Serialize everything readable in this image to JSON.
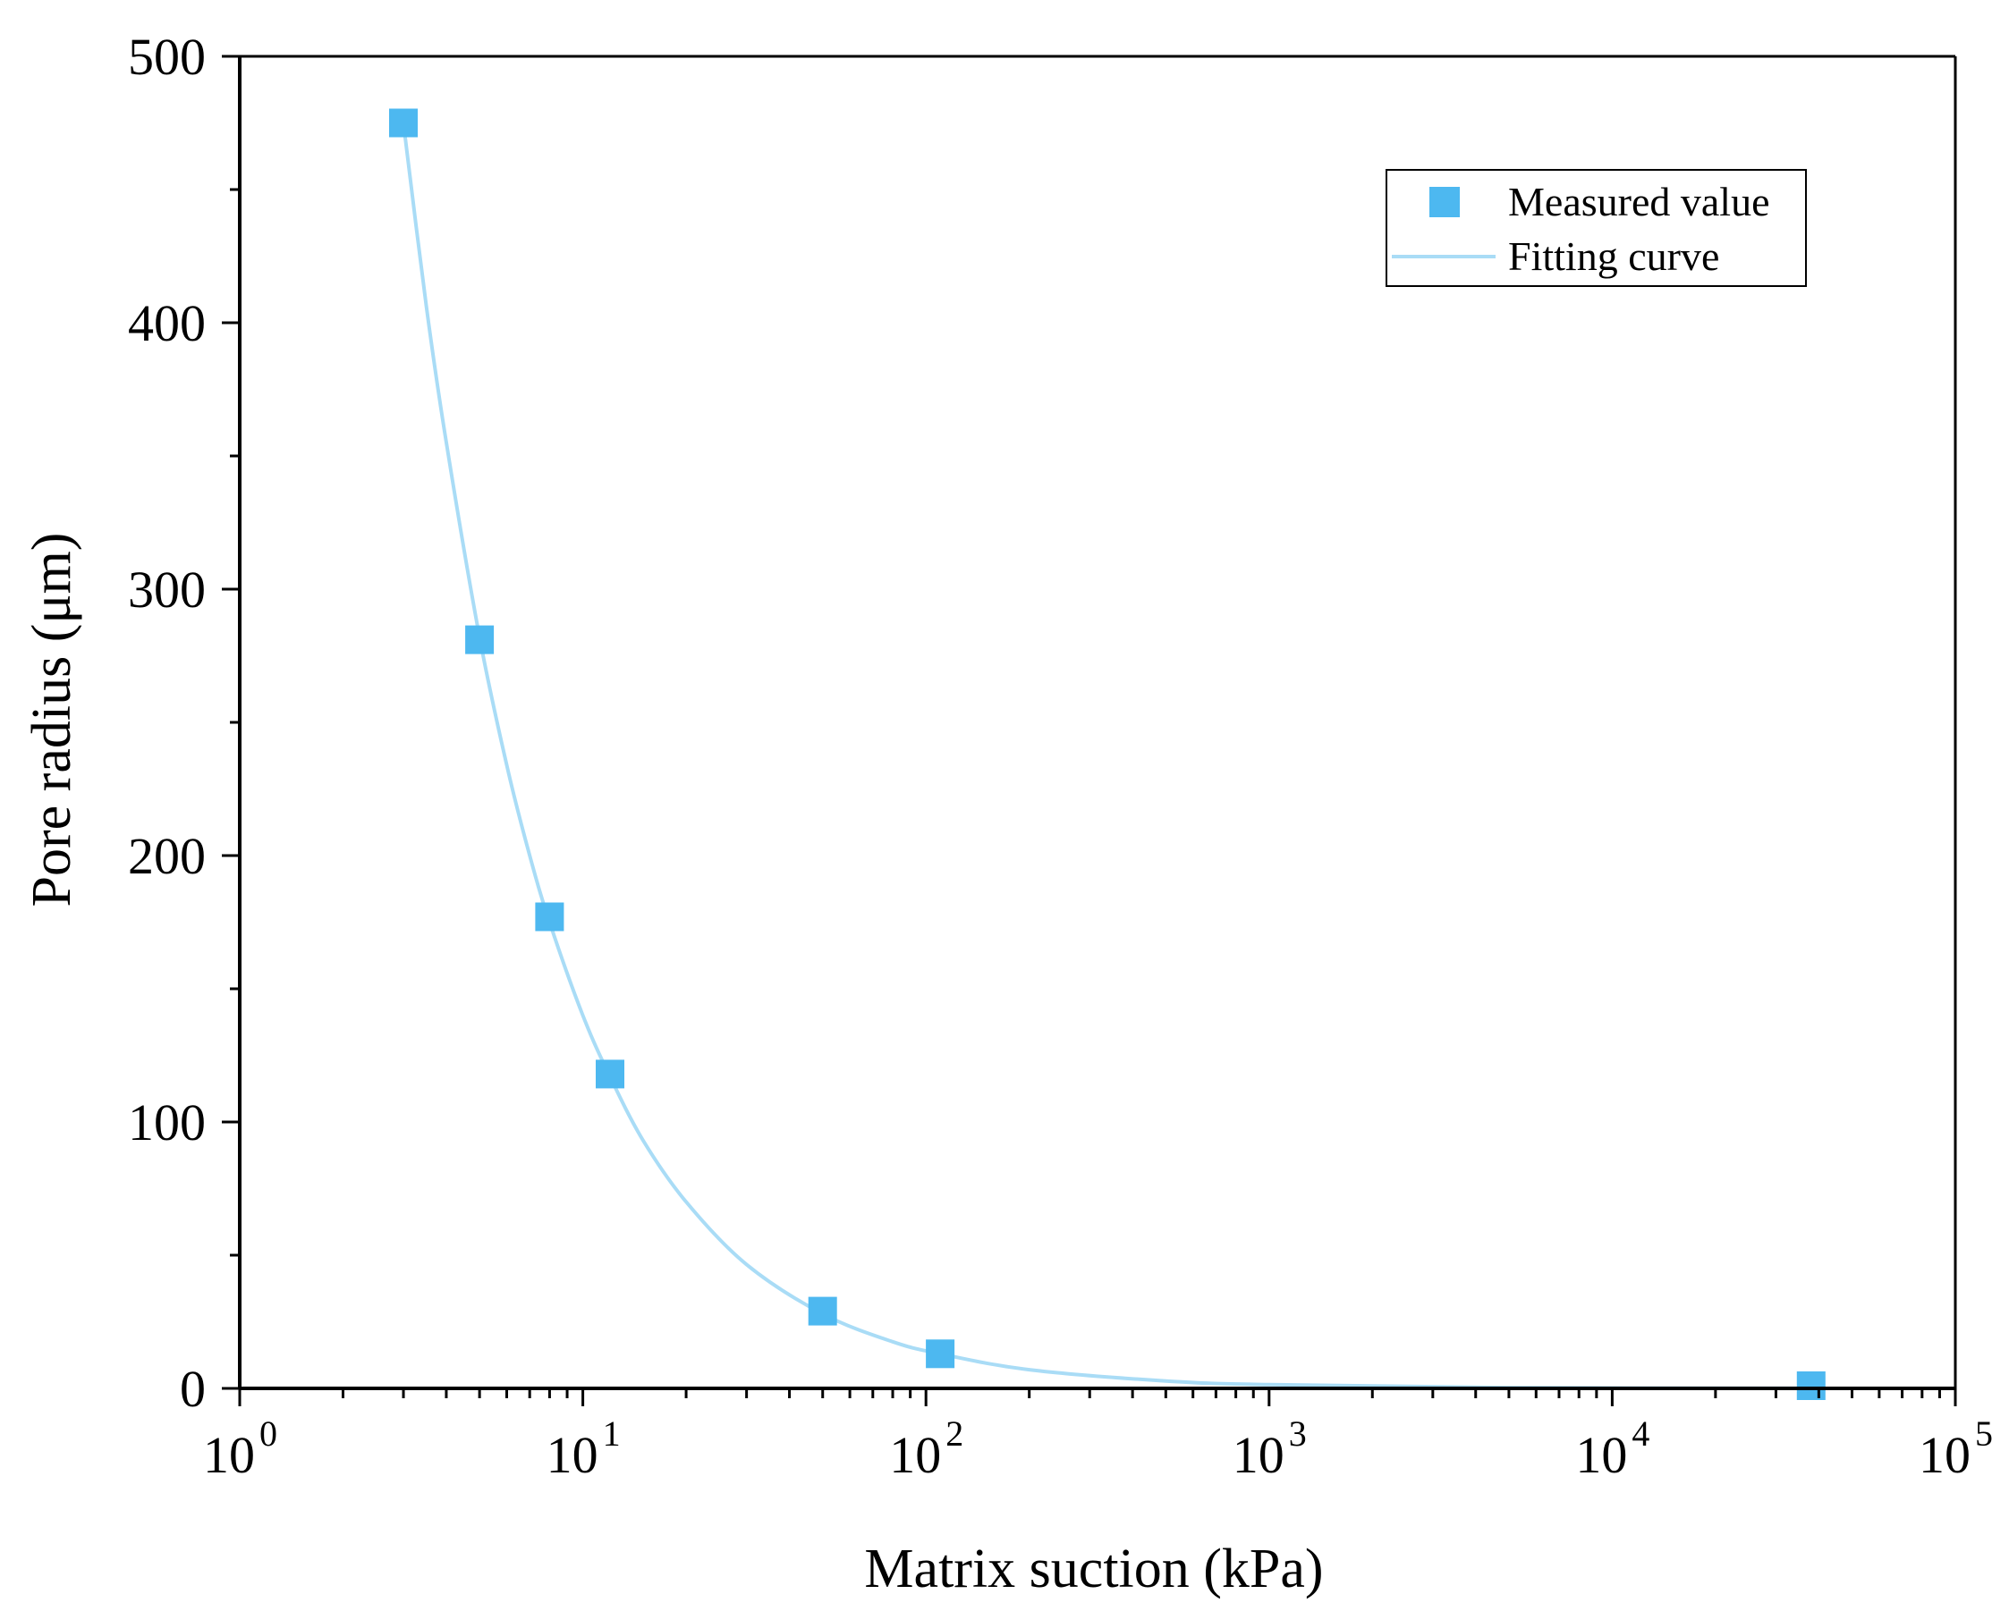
{
  "chart_data": {
    "type": "scatter",
    "title": "",
    "xlabel": "Matrix suction (kPa)",
    "ylabel": "Pore radius (μm)",
    "xscale": "log",
    "xlim": [
      1,
      100000
    ],
    "ylim": [
      0,
      500
    ],
    "x_tick_labels": [
      {
        "base": "10",
        "exp": "0",
        "value": 1
      },
      {
        "base": "10",
        "exp": "1",
        "value": 10
      },
      {
        "base": "10",
        "exp": "2",
        "value": 100
      },
      {
        "base": "10",
        "exp": "3",
        "value": 1000
      },
      {
        "base": "10",
        "exp": "4",
        "value": 10000
      },
      {
        "base": "10",
        "exp": "5",
        "value": 100000
      }
    ],
    "y_tick_labels": [
      "0",
      "100",
      "200",
      "300",
      "400",
      "500"
    ],
    "series": [
      {
        "name": "Measured value",
        "kind": "scatter",
        "marker": "square",
        "color": "#4db8f0",
        "x": [
          3,
          5,
          8,
          12,
          50,
          110,
          38000
        ],
        "y": [
          475,
          281,
          177,
          118,
          29,
          13,
          1
        ]
      },
      {
        "name": "Fitting curve",
        "kind": "line",
        "color": "#a9dcf6",
        "x": [
          3,
          3.5,
          4,
          5,
          6,
          7,
          8,
          10,
          12,
          15,
          20,
          30,
          50,
          80,
          110,
          200,
          500,
          1000,
          5000,
          38000
        ],
        "y": [
          475,
          406,
          355,
          282,
          234,
          200,
          175,
          140,
          117,
          93,
          70,
          46.5,
          28,
          17.5,
          13,
          7,
          2.8,
          1.4,
          0.3,
          0.05
        ]
      }
    ],
    "legend": {
      "position": "top-right",
      "entries": [
        "Measured value",
        "Fitting curve"
      ]
    },
    "grid": false
  }
}
